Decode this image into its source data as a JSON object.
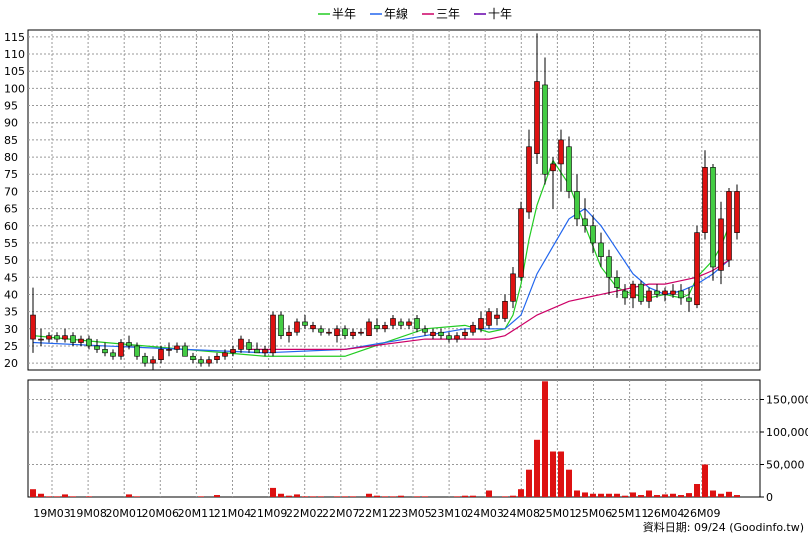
{
  "chart_data": [
    {
      "type": "candlestick",
      "legend": [
        {
          "label": "半年",
          "color": "#22cc22"
        },
        {
          "label": "年線",
          "color": "#2266ee"
        },
        {
          "label": "三年",
          "color": "#cc0066"
        },
        {
          "label": "十年",
          "color": "#6600aa"
        }
      ],
      "x_tick_labels": [
        "19M03",
        "19M08",
        "20M01",
        "20M06",
        "20M11",
        "21M04",
        "21M09",
        "22M02",
        "22M07",
        "22M12",
        "23M05",
        "23M10",
        "24M03",
        "24M08",
        "25M01",
        "25M06",
        "25M11",
        "26M04",
        "26M09"
      ],
      "ylim": [
        18,
        117
      ],
      "y_ticks": [
        20,
        25,
        30,
        35,
        40,
        45,
        50,
        55,
        60,
        65,
        70,
        75,
        80,
        85,
        90,
        95,
        100,
        105,
        110,
        115
      ],
      "up_color": "#dd1111",
      "down_color": "#44cc44",
      "candles": [
        {
          "o": 27,
          "h": 42,
          "l": 23,
          "c": 34
        },
        {
          "o": 27,
          "h": 30,
          "l": 25,
          "c": 27
        },
        {
          "o": 27,
          "h": 29,
          "l": 26,
          "c": 28
        },
        {
          "o": 28,
          "h": 29,
          "l": 26,
          "c": 27
        },
        {
          "o": 27,
          "h": 30,
          "l": 26,
          "c": 28
        },
        {
          "o": 28,
          "h": 29,
          "l": 25,
          "c": 26
        },
        {
          "o": 26,
          "h": 28,
          "l": 25,
          "c": 27
        },
        {
          "o": 27,
          "h": 28,
          "l": 24,
          "c": 25
        },
        {
          "o": 25,
          "h": 27,
          "l": 23,
          "c": 24
        },
        {
          "o": 24,
          "h": 26,
          "l": 22,
          "c": 23
        },
        {
          "o": 23,
          "h": 24,
          "l": 21,
          "c": 22
        },
        {
          "o": 22,
          "h": 27,
          "l": 21,
          "c": 26
        },
        {
          "o": 26,
          "h": 28,
          "l": 24,
          "c": 25
        },
        {
          "o": 25,
          "h": 26,
          "l": 21,
          "c": 22
        },
        {
          "o": 22,
          "h": 23,
          "l": 19,
          "c": 20
        },
        {
          "o": 20,
          "h": 22,
          "l": 18,
          "c": 21
        },
        {
          "o": 21,
          "h": 25,
          "l": 20,
          "c": 24
        },
        {
          "o": 24,
          "h": 26,
          "l": 22,
          "c": 24
        },
        {
          "o": 24,
          "h": 26,
          "l": 23,
          "c": 25
        },
        {
          "o": 25,
          "h": 26,
          "l": 22,
          "c": 22
        },
        {
          "o": 22,
          "h": 23,
          "l": 20,
          "c": 21
        },
        {
          "o": 21,
          "h": 22,
          "l": 19,
          "c": 20
        },
        {
          "o": 20,
          "h": 22,
          "l": 19,
          "c": 21
        },
        {
          "o": 21,
          "h": 23,
          "l": 20,
          "c": 22
        },
        {
          "o": 22,
          "h": 24,
          "l": 21,
          "c": 23
        },
        {
          "o": 23,
          "h": 25,
          "l": 22,
          "c": 24
        },
        {
          "o": 24,
          "h": 28,
          "l": 23,
          "c": 27
        },
        {
          "o": 26,
          "h": 27,
          "l": 23,
          "c": 24
        },
        {
          "o": 24,
          "h": 26,
          "l": 23,
          "c": 23
        },
        {
          "o": 23,
          "h": 25,
          "l": 22,
          "c": 24
        },
        {
          "o": 23,
          "h": 35,
          "l": 22,
          "c": 34
        },
        {
          "o": 34,
          "h": 35,
          "l": 27,
          "c": 28
        },
        {
          "o": 28,
          "h": 31,
          "l": 26,
          "c": 29
        },
        {
          "o": 29,
          "h": 33,
          "l": 28,
          "c": 32
        },
        {
          "o": 32,
          "h": 34,
          "l": 30,
          "c": 31
        },
        {
          "o": 30,
          "h": 32,
          "l": 29,
          "c": 31
        },
        {
          "o": 30,
          "h": 31,
          "l": 28,
          "c": 29
        },
        {
          "o": 29,
          "h": 30,
          "l": 28,
          "c": 29
        },
        {
          "o": 28,
          "h": 31,
          "l": 26,
          "c": 30
        },
        {
          "o": 30,
          "h": 31,
          "l": 27,
          "c": 28
        },
        {
          "o": 28,
          "h": 30,
          "l": 27,
          "c": 29
        },
        {
          "o": 29,
          "h": 30,
          "l": 28,
          "c": 29
        },
        {
          "o": 28,
          "h": 33,
          "l": 28,
          "c": 32
        },
        {
          "o": 31,
          "h": 33,
          "l": 29,
          "c": 30
        },
        {
          "o": 30,
          "h": 32,
          "l": 29,
          "c": 31
        },
        {
          "o": 31,
          "h": 34,
          "l": 30,
          "c": 33
        },
        {
          "o": 32,
          "h": 33,
          "l": 30,
          "c": 31
        },
        {
          "o": 31,
          "h": 33,
          "l": 30,
          "c": 32
        },
        {
          "o": 33,
          "h": 34,
          "l": 29,
          "c": 30
        },
        {
          "o": 30,
          "h": 31,
          "l": 28,
          "c": 29
        },
        {
          "o": 28,
          "h": 30,
          "l": 27,
          "c": 29
        },
        {
          "o": 29,
          "h": 30,
          "l": 27,
          "c": 28
        },
        {
          "o": 28,
          "h": 29,
          "l": 26,
          "c": 27
        },
        {
          "o": 27,
          "h": 29,
          "l": 26,
          "c": 28
        },
        {
          "o": 28,
          "h": 30,
          "l": 27,
          "c": 29
        },
        {
          "o": 29,
          "h": 32,
          "l": 28,
          "c": 31
        },
        {
          "o": 30,
          "h": 35,
          "l": 29,
          "c": 33
        },
        {
          "o": 31,
          "h": 36,
          "l": 30,
          "c": 35
        },
        {
          "o": 33,
          "h": 36,
          "l": 31,
          "c": 34
        },
        {
          "o": 33,
          "h": 40,
          "l": 32,
          "c": 38
        },
        {
          "o": 38,
          "h": 48,
          "l": 36,
          "c": 46
        },
        {
          "o": 45,
          "h": 67,
          "l": 44,
          "c": 65
        },
        {
          "o": 64,
          "h": 88,
          "l": 62,
          "c": 83
        },
        {
          "o": 81,
          "h": 116,
          "l": 78,
          "c": 102
        },
        {
          "o": 101,
          "h": 109,
          "l": 72,
          "c": 75
        },
        {
          "o": 76,
          "h": 80,
          "l": 65,
          "c": 78
        },
        {
          "o": 78,
          "h": 88,
          "l": 70,
          "c": 85
        },
        {
          "o": 83,
          "h": 86,
          "l": 68,
          "c": 70
        },
        {
          "o": 70,
          "h": 75,
          "l": 60,
          "c": 62
        },
        {
          "o": 62,
          "h": 68,
          "l": 58,
          "c": 60
        },
        {
          "o": 60,
          "h": 63,
          "l": 52,
          "c": 55
        },
        {
          "o": 55,
          "h": 58,
          "l": 48,
          "c": 51
        },
        {
          "o": 51,
          "h": 53,
          "l": 40,
          "c": 45
        },
        {
          "o": 45,
          "h": 47,
          "l": 39,
          "c": 42
        },
        {
          "o": 41,
          "h": 43,
          "l": 37,
          "c": 39
        },
        {
          "o": 39,
          "h": 44,
          "l": 36,
          "c": 43
        },
        {
          "o": 43,
          "h": 44,
          "l": 37,
          "c": 38
        },
        {
          "o": 38,
          "h": 42,
          "l": 36,
          "c": 41
        },
        {
          "o": 41,
          "h": 43,
          "l": 39,
          "c": 40
        },
        {
          "o": 40,
          "h": 42,
          "l": 38,
          "c": 41
        },
        {
          "o": 40,
          "h": 43,
          "l": 39,
          "c": 41
        },
        {
          "o": 41,
          "h": 43,
          "l": 37,
          "c": 39
        },
        {
          "o": 39,
          "h": 42,
          "l": 35,
          "c": 38
        },
        {
          "o": 37,
          "h": 60,
          "l": 36,
          "c": 58
        },
        {
          "o": 58,
          "h": 82,
          "l": 56,
          "c": 77
        },
        {
          "o": 77,
          "h": 78,
          "l": 44,
          "c": 48
        },
        {
          "o": 47,
          "h": 67,
          "l": 43,
          "c": 62
        },
        {
          "o": 50,
          "h": 71,
          "l": 48,
          "c": 70
        },
        {
          "o": 58,
          "h": 72,
          "l": 56,
          "c": 70
        }
      ],
      "series": [
        {
          "name": "半年",
          "color": "#22cc22",
          "x": [
            1,
            10,
            20,
            30,
            40,
            50,
            55,
            58,
            60,
            61,
            62,
            63,
            64,
            66,
            68,
            70,
            72,
            74,
            76,
            78,
            80,
            82,
            83,
            84,
            86,
            87,
            88
          ],
          "values": [
            28,
            26,
            24,
            22,
            22,
            30,
            31,
            29,
            30,
            34,
            43,
            56,
            66,
            79,
            72,
            60,
            48,
            42,
            40,
            39,
            40,
            39,
            40,
            45,
            50,
            54,
            60
          ]
        },
        {
          "name": "年線",
          "color": "#2266ee",
          "x": [
            1,
            10,
            20,
            30,
            40,
            50,
            55,
            58,
            60,
            62,
            63,
            64,
            66,
            68,
            70,
            72,
            74,
            76,
            78,
            80,
            82,
            84,
            86,
            88
          ],
          "values": [
            26,
            25,
            24,
            23,
            24,
            28,
            30,
            30,
            30,
            34,
            40,
            46,
            54,
            62,
            65,
            60,
            53,
            46,
            42,
            40,
            41,
            43,
            46,
            50
          ]
        },
        {
          "name": "三年",
          "color": "#cc0066",
          "x": [
            28,
            40,
            50,
            58,
            60,
            62,
            64,
            66,
            68,
            70,
            72,
            74,
            76,
            78,
            80,
            82,
            84,
            86,
            88
          ],
          "values": [
            24,
            24,
            27,
            27,
            28,
            31,
            34,
            36,
            38,
            39,
            40,
            41,
            42,
            43,
            43,
            44,
            45,
            47,
            50
          ]
        }
      ],
      "volume": {
        "ylim": [
          0,
          180000
        ],
        "y_tick_labels": [
          "0",
          "50,000",
          "100,000",
          "150,000"
        ],
        "y_tick_values": [
          0,
          50000,
          100000,
          150000
        ],
        "bars": [
          12000,
          5000,
          1000,
          1000,
          4000,
          1000,
          0,
          1000,
          0,
          0,
          0,
          0,
          4000,
          1000,
          0,
          0,
          0,
          0,
          0,
          0,
          0,
          1000,
          0,
          3000,
          0,
          0,
          0,
          0,
          0,
          0,
          14000,
          5000,
          2000,
          4000,
          1000,
          1000,
          1000,
          0,
          1000,
          1000,
          1000,
          0,
          5000,
          2000,
          1000,
          1000,
          2000,
          0,
          1000,
          1000,
          0,
          0,
          0,
          1000,
          2000,
          2000,
          0,
          10000,
          0,
          1000,
          2000,
          12000,
          42000,
          88000,
          178000,
          70000,
          70000,
          42000,
          10000,
          7000,
          5000,
          5000,
          5000,
          5000,
          2000,
          7000,
          3000,
          10000,
          3000,
          4000,
          5000,
          3000,
          6000,
          20000,
          50000,
          10000,
          5000,
          8000,
          3000
        ]
      },
      "source_label": "資料日期: 09/24  (Goodinfo.tw)"
    }
  ]
}
